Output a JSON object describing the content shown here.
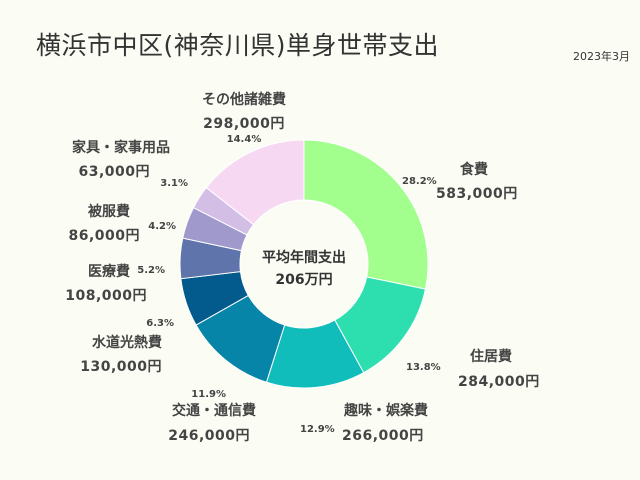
{
  "title": "横浜市中区(神奈川県)単身世帯支出",
  "date": "2023年3月",
  "chart_data": {
    "type": "pie",
    "center_title": "平均年間支出",
    "center_value": "206万円",
    "slices": [
      {
        "name": "食費",
        "value": 583000,
        "amount": "583,000円",
        "percent": "28.2%",
        "color": "#a2ff8e"
      },
      {
        "name": "住居費",
        "value": 284000,
        "amount": "284,000円",
        "percent": "13.8%",
        "color": "#2ddfaf"
      },
      {
        "name": "趣味・娯楽費",
        "value": 266000,
        "amount": "266,000円",
        "percent": "12.9%",
        "color": "#11bdbb"
      },
      {
        "name": "交通・通信費",
        "value": 246000,
        "amount": "246,000円",
        "percent": "11.9%",
        "color": "#0685a8"
      },
      {
        "name": "水道光熱費",
        "value": 130000,
        "amount": "130,000円",
        "percent": "6.3%",
        "color": "#035a8c"
      },
      {
        "name": "医療費",
        "value": 108000,
        "amount": "108,000円",
        "percent": "5.2%",
        "color": "#5f74ab"
      },
      {
        "name": "被服費",
        "value": 86000,
        "amount": "86,000円",
        "percent": "4.2%",
        "color": "#9f99cc"
      },
      {
        "name": "家具・家事用品",
        "value": 63000,
        "amount": "63,000円",
        "percent": "3.1%",
        "color": "#d3bfe6"
      },
      {
        "name": "その他諸雑費",
        "value": 298000,
        "amount": "298,000円",
        "percent": "14.4%",
        "color": "#f6d8f3"
      }
    ]
  }
}
